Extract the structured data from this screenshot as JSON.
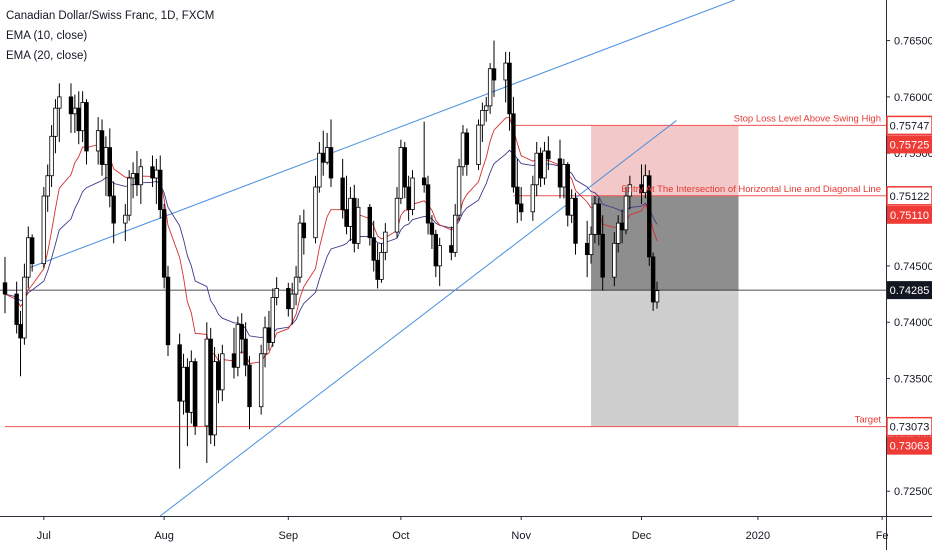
{
  "legend": {
    "title": "Canadian Dollar/Swiss Franc, 1D, FXCM",
    "ema1": "EMA (10, close)",
    "ema2": "EMA (20, close)"
  },
  "colors": {
    "trendline": "#4a8fde",
    "ema10": "#d32f2f",
    "ema20": "#3f3a8a",
    "stop_zone": "#f3c8c8",
    "target_zone_dark": "#8e8e8e",
    "target_zone_light": "#cfcfcf",
    "level_line": "#ef5350",
    "price_line": "#131722",
    "tag_red": "#ef3b36",
    "tag_black": "#131722"
  },
  "chart_data": {
    "type": "candlestick",
    "title": "Canadian Dollar/Swiss Franc, 1D, FXCM",
    "xlabel": "",
    "ylabel": "",
    "ylim": [
      0.7228,
      0.7686
    ],
    "date_range": [
      "2019-06-21",
      "2020-02-03"
    ],
    "x_tick_labels": [
      {
        "date": "2019-07-01",
        "label": "Jul"
      },
      {
        "date": "2019-08-01",
        "label": "Aug"
      },
      {
        "date": "2019-09-02",
        "label": "Sep"
      },
      {
        "date": "2019-10-01",
        "label": "Oct"
      },
      {
        "date": "2019-11-01",
        "label": "Nov"
      },
      {
        "date": "2019-12-02",
        "label": "Dec"
      },
      {
        "date": "2020-01-01",
        "label": "2020"
      },
      {
        "date": "2020-02-02",
        "label": "Fe"
      }
    ],
    "y_tick_labels": [
      "0.76500",
      "0.76000",
      "0.75500",
      "0.75000",
      "0.74500",
      "0.74000",
      "0.73500",
      "0.73000",
      "0.72500"
    ],
    "candles": [
      {
        "t": "2019-06-21",
        "o": 0.7435,
        "h": 0.7458,
        "l": 0.7408,
        "c": 0.7425
      },
      {
        "t": "2019-06-24",
        "o": 0.7425,
        "h": 0.7436,
        "l": 0.739,
        "c": 0.7398
      },
      {
        "t": "2019-06-25",
        "o": 0.7398,
        "h": 0.741,
        "l": 0.7352,
        "c": 0.7386
      },
      {
        "t": "2019-06-26",
        "o": 0.7386,
        "h": 0.7452,
        "l": 0.738,
        "c": 0.744
      },
      {
        "t": "2019-06-27",
        "o": 0.744,
        "h": 0.7485,
        "l": 0.743,
        "c": 0.7475
      },
      {
        "t": "2019-06-28",
        "o": 0.7475,
        "h": 0.7478,
        "l": 0.7445,
        "c": 0.7452
      },
      {
        "t": "2019-07-01",
        "o": 0.7452,
        "h": 0.752,
        "l": 0.7448,
        "c": 0.7512
      },
      {
        "t": "2019-07-02",
        "o": 0.7512,
        "h": 0.754,
        "l": 0.7498,
        "c": 0.753
      },
      {
        "t": "2019-07-03",
        "o": 0.753,
        "h": 0.7575,
        "l": 0.752,
        "c": 0.7565
      },
      {
        "t": "2019-07-04",
        "o": 0.7565,
        "h": 0.7598,
        "l": 0.755,
        "c": 0.759
      },
      {
        "t": "2019-07-05",
        "o": 0.759,
        "h": 0.7612,
        "l": 0.756,
        "c": 0.76
      },
      {
        "t": "2019-07-08",
        "o": 0.76,
        "h": 0.7612,
        "l": 0.7568,
        "c": 0.7585
      },
      {
        "t": "2019-07-09",
        "o": 0.7585,
        "h": 0.7602,
        "l": 0.7568,
        "c": 0.759
      },
      {
        "t": "2019-07-10",
        "o": 0.759,
        "h": 0.7605,
        "l": 0.7558,
        "c": 0.757
      },
      {
        "t": "2019-07-11",
        "o": 0.757,
        "h": 0.7605,
        "l": 0.756,
        "c": 0.7595
      },
      {
        "t": "2019-07-12",
        "o": 0.7595,
        "h": 0.7598,
        "l": 0.754,
        "c": 0.7552
      },
      {
        "t": "2019-07-15",
        "o": 0.7552,
        "h": 0.7582,
        "l": 0.754,
        "c": 0.757
      },
      {
        "t": "2019-07-16",
        "o": 0.757,
        "h": 0.758,
        "l": 0.753,
        "c": 0.754
      },
      {
        "t": "2019-07-17",
        "o": 0.754,
        "h": 0.7565,
        "l": 0.7512,
        "c": 0.7555
      },
      {
        "t": "2019-07-18",
        "o": 0.7555,
        "h": 0.7572,
        "l": 0.7502,
        "c": 0.7512
      },
      {
        "t": "2019-07-19",
        "o": 0.7512,
        "h": 0.7525,
        "l": 0.747,
        "c": 0.7488
      },
      {
        "t": "2019-07-22",
        "o": 0.7488,
        "h": 0.7505,
        "l": 0.7472,
        "c": 0.7495
      },
      {
        "t": "2019-07-23",
        "o": 0.7495,
        "h": 0.7535,
        "l": 0.749,
        "c": 0.7528
      },
      {
        "t": "2019-07-24",
        "o": 0.7528,
        "h": 0.7542,
        "l": 0.751,
        "c": 0.7532
      },
      {
        "t": "2019-07-25",
        "o": 0.7532,
        "h": 0.7552,
        "l": 0.7512,
        "c": 0.7522
      },
      {
        "t": "2019-07-26",
        "o": 0.7522,
        "h": 0.7545,
        "l": 0.7505,
        "c": 0.7538
      },
      {
        "t": "2019-07-29",
        "o": 0.7538,
        "h": 0.7548,
        "l": 0.752,
        "c": 0.7528
      },
      {
        "t": "2019-07-30",
        "o": 0.7528,
        "h": 0.7545,
        "l": 0.7505,
        "c": 0.7535
      },
      {
        "t": "2019-07-31",
        "o": 0.7535,
        "h": 0.7548,
        "l": 0.7492,
        "c": 0.75
      },
      {
        "t": "2019-08-01",
        "o": 0.75,
        "h": 0.7505,
        "l": 0.743,
        "c": 0.744
      },
      {
        "t": "2019-08-02",
        "o": 0.744,
        "h": 0.745,
        "l": 0.737,
        "c": 0.738
      },
      {
        "t": "2019-08-05",
        "o": 0.738,
        "h": 0.739,
        "l": 0.727,
        "c": 0.733
      },
      {
        "t": "2019-08-06",
        "o": 0.733,
        "h": 0.7372,
        "l": 0.7318,
        "c": 0.736
      },
      {
        "t": "2019-08-07",
        "o": 0.736,
        "h": 0.7368,
        "l": 0.729,
        "c": 0.732
      },
      {
        "t": "2019-08-08",
        "o": 0.732,
        "h": 0.7375,
        "l": 0.731,
        "c": 0.7365
      },
      {
        "t": "2019-08-09",
        "o": 0.7365,
        "h": 0.7368,
        "l": 0.73,
        "c": 0.7308
      },
      {
        "t": "2019-08-12",
        "o": 0.7308,
        "h": 0.74,
        "l": 0.7275,
        "c": 0.7385
      },
      {
        "t": "2019-08-13",
        "o": 0.7385,
        "h": 0.7395,
        "l": 0.7292,
        "c": 0.73
      },
      {
        "t": "2019-08-14",
        "o": 0.73,
        "h": 0.7378,
        "l": 0.729,
        "c": 0.7365
      },
      {
        "t": "2019-08-15",
        "o": 0.7365,
        "h": 0.7372,
        "l": 0.7328,
        "c": 0.734
      },
      {
        "t": "2019-08-16",
        "o": 0.734,
        "h": 0.738,
        "l": 0.733,
        "c": 0.7372
      },
      {
        "t": "2019-08-19",
        "o": 0.7372,
        "h": 0.7395,
        "l": 0.735,
        "c": 0.736
      },
      {
        "t": "2019-08-20",
        "o": 0.736,
        "h": 0.7405,
        "l": 0.7352,
        "c": 0.7398
      },
      {
        "t": "2019-08-21",
        "o": 0.7398,
        "h": 0.7408,
        "l": 0.7372,
        "c": 0.7385
      },
      {
        "t": "2019-08-22",
        "o": 0.7385,
        "h": 0.74,
        "l": 0.7352,
        "c": 0.7362
      },
      {
        "t": "2019-08-23",
        "o": 0.7362,
        "h": 0.737,
        "l": 0.7305,
        "c": 0.7325
      },
      {
        "t": "2019-08-26",
        "o": 0.7325,
        "h": 0.738,
        "l": 0.7318,
        "c": 0.7372
      },
      {
        "t": "2019-08-27",
        "o": 0.7372,
        "h": 0.7405,
        "l": 0.736,
        "c": 0.7395
      },
      {
        "t": "2019-08-28",
        "o": 0.7395,
        "h": 0.741,
        "l": 0.7375,
        "c": 0.7382
      },
      {
        "t": "2019-08-29",
        "o": 0.7382,
        "h": 0.743,
        "l": 0.7378,
        "c": 0.7422
      },
      {
        "t": "2019-08-30",
        "o": 0.7422,
        "h": 0.744,
        "l": 0.7415,
        "c": 0.743
      },
      {
        "t": "2019-09-02",
        "o": 0.743,
        "h": 0.7435,
        "l": 0.7405,
        "c": 0.7412
      },
      {
        "t": "2019-09-03",
        "o": 0.7412,
        "h": 0.7435,
        "l": 0.7398,
        "c": 0.7425
      },
      {
        "t": "2019-09-04",
        "o": 0.7425,
        "h": 0.745,
        "l": 0.7415,
        "c": 0.744
      },
      {
        "t": "2019-09-05",
        "o": 0.744,
        "h": 0.7495,
        "l": 0.7435,
        "c": 0.7488
      },
      {
        "t": "2019-09-06",
        "o": 0.7488,
        "h": 0.75,
        "l": 0.746,
        "c": 0.7475
      },
      {
        "t": "2019-09-09",
        "o": 0.7475,
        "h": 0.753,
        "l": 0.747,
        "c": 0.752
      },
      {
        "t": "2019-09-10",
        "o": 0.752,
        "h": 0.756,
        "l": 0.7515,
        "c": 0.755
      },
      {
        "t": "2019-09-11",
        "o": 0.755,
        "h": 0.757,
        "l": 0.753,
        "c": 0.7542
      },
      {
        "t": "2019-09-12",
        "o": 0.7542,
        "h": 0.7568,
        "l": 0.754,
        "c": 0.7555
      },
      {
        "t": "2019-09-13",
        "o": 0.7555,
        "h": 0.758,
        "l": 0.752,
        "c": 0.7528
      },
      {
        "t": "2019-09-16",
        "o": 0.7528,
        "h": 0.7545,
        "l": 0.7492,
        "c": 0.75
      },
      {
        "t": "2019-09-17",
        "o": 0.75,
        "h": 0.753,
        "l": 0.7478,
        "c": 0.7485
      },
      {
        "t": "2019-09-18",
        "o": 0.7485,
        "h": 0.752,
        "l": 0.7472,
        "c": 0.751
      },
      {
        "t": "2019-09-19",
        "o": 0.751,
        "h": 0.7522,
        "l": 0.7462,
        "c": 0.747
      },
      {
        "t": "2019-09-20",
        "o": 0.747,
        "h": 0.751,
        "l": 0.7465,
        "c": 0.7502
      },
      {
        "t": "2019-09-23",
        "o": 0.7502,
        "h": 0.7505,
        "l": 0.7468,
        "c": 0.7475
      },
      {
        "t": "2019-09-24",
        "o": 0.7475,
        "h": 0.749,
        "l": 0.7445,
        "c": 0.7455
      },
      {
        "t": "2019-09-25",
        "o": 0.7455,
        "h": 0.747,
        "l": 0.743,
        "c": 0.7438
      },
      {
        "t": "2019-09-26",
        "o": 0.7438,
        "h": 0.747,
        "l": 0.7435,
        "c": 0.7462
      },
      {
        "t": "2019-09-27",
        "o": 0.7462,
        "h": 0.7488,
        "l": 0.7455,
        "c": 0.748
      },
      {
        "t": "2019-09-30",
        "o": 0.748,
        "h": 0.752,
        "l": 0.7475,
        "c": 0.751
      },
      {
        "t": "2019-10-01",
        "o": 0.751,
        "h": 0.7562,
        "l": 0.7505,
        "c": 0.7555
      },
      {
        "t": "2019-10-02",
        "o": 0.7555,
        "h": 0.756,
        "l": 0.751,
        "c": 0.752
      },
      {
        "t": "2019-10-03",
        "o": 0.752,
        "h": 0.753,
        "l": 0.749,
        "c": 0.75
      },
      {
        "t": "2019-10-04",
        "o": 0.75,
        "h": 0.7535,
        "l": 0.7495,
        "c": 0.7528
      },
      {
        "t": "2019-10-07",
        "o": 0.7528,
        "h": 0.7578,
        "l": 0.7515,
        "c": 0.7522
      },
      {
        "t": "2019-10-08",
        "o": 0.7522,
        "h": 0.753,
        "l": 0.7478,
        "c": 0.7488
      },
      {
        "t": "2019-10-09",
        "o": 0.7488,
        "h": 0.7495,
        "l": 0.7465,
        "c": 0.7478
      },
      {
        "t": "2019-10-10",
        "o": 0.7478,
        "h": 0.7482,
        "l": 0.744,
        "c": 0.745
      },
      {
        "t": "2019-10-11",
        "o": 0.745,
        "h": 0.7475,
        "l": 0.7432,
        "c": 0.7468
      },
      {
        "t": "2019-10-14",
        "o": 0.7468,
        "h": 0.7485,
        "l": 0.7455,
        "c": 0.7462
      },
      {
        "t": "2019-10-15",
        "o": 0.7462,
        "h": 0.7505,
        "l": 0.7458,
        "c": 0.7495
      },
      {
        "t": "2019-10-16",
        "o": 0.7495,
        "h": 0.7545,
        "l": 0.749,
        "c": 0.7538
      },
      {
        "t": "2019-10-17",
        "o": 0.7538,
        "h": 0.7575,
        "l": 0.753,
        "c": 0.7568
      },
      {
        "t": "2019-10-18",
        "o": 0.7568,
        "h": 0.7572,
        "l": 0.753,
        "c": 0.754
      },
      {
        "t": "2019-10-21",
        "o": 0.754,
        "h": 0.758,
        "l": 0.7535,
        "c": 0.7575
      },
      {
        "t": "2019-10-22",
        "o": 0.7575,
        "h": 0.7595,
        "l": 0.756,
        "c": 0.7588
      },
      {
        "t": "2019-10-23",
        "o": 0.7588,
        "h": 0.76,
        "l": 0.7578,
        "c": 0.7592
      },
      {
        "t": "2019-10-24",
        "o": 0.7592,
        "h": 0.763,
        "l": 0.7585,
        "c": 0.7625
      },
      {
        "t": "2019-10-25",
        "o": 0.7625,
        "h": 0.765,
        "l": 0.76,
        "c": 0.7615
      },
      {
        "t": "2019-10-28",
        "o": 0.7615,
        "h": 0.764,
        "l": 0.7595,
        "c": 0.763
      },
      {
        "t": "2019-10-29",
        "o": 0.763,
        "h": 0.764,
        "l": 0.757,
        "c": 0.7585
      },
      {
        "t": "2019-10-30",
        "o": 0.7585,
        "h": 0.76,
        "l": 0.7515,
        "c": 0.752
      },
      {
        "t": "2019-10-31",
        "o": 0.752,
        "h": 0.7545,
        "l": 0.7488,
        "c": 0.7505
      },
      {
        "t": "2019-11-01",
        "o": 0.7505,
        "h": 0.752,
        "l": 0.749,
        "c": 0.7498
      },
      {
        "t": "2019-11-04",
        "o": 0.7498,
        "h": 0.753,
        "l": 0.749,
        "c": 0.7522
      },
      {
        "t": "2019-11-05",
        "o": 0.7522,
        "h": 0.756,
        "l": 0.7512,
        "c": 0.755
      },
      {
        "t": "2019-11-06",
        "o": 0.755,
        "h": 0.7555,
        "l": 0.752,
        "c": 0.7528
      },
      {
        "t": "2019-11-07",
        "o": 0.7528,
        "h": 0.756,
        "l": 0.7522,
        "c": 0.7552
      },
      {
        "t": "2019-11-08",
        "o": 0.7552,
        "h": 0.7565,
        "l": 0.7535,
        "c": 0.7545
      },
      {
        "t": "2019-11-11",
        "o": 0.7545,
        "h": 0.7562,
        "l": 0.751,
        "c": 0.752
      },
      {
        "t": "2019-11-12",
        "o": 0.752,
        "h": 0.7545,
        "l": 0.751,
        "c": 0.754
      },
      {
        "t": "2019-11-13",
        "o": 0.754,
        "h": 0.7542,
        "l": 0.7485,
        "c": 0.7495
      },
      {
        "t": "2019-11-14",
        "o": 0.7495,
        "h": 0.7518,
        "l": 0.7488,
        "c": 0.751
      },
      {
        "t": "2019-11-15",
        "o": 0.751,
        "h": 0.7515,
        "l": 0.746,
        "c": 0.747
      },
      {
        "t": "2019-11-18",
        "o": 0.747,
        "h": 0.749,
        "l": 0.744,
        "c": 0.746
      },
      {
        "t": "2019-11-19",
        "o": 0.746,
        "h": 0.7485,
        "l": 0.7452,
        "c": 0.7478
      },
      {
        "t": "2019-11-20",
        "o": 0.7478,
        "h": 0.7512,
        "l": 0.747,
        "c": 0.7505
      },
      {
        "t": "2019-11-21",
        "o": 0.7505,
        "h": 0.751,
        "l": 0.7468,
        "c": 0.7478
      },
      {
        "t": "2019-11-22",
        "o": 0.7478,
        "h": 0.7495,
        "l": 0.7428,
        "c": 0.744
      },
      {
        "t": "2019-11-25",
        "o": 0.744,
        "h": 0.748,
        "l": 0.7432,
        "c": 0.747
      },
      {
        "t": "2019-11-26",
        "o": 0.747,
        "h": 0.7495,
        "l": 0.7462,
        "c": 0.7488
      },
      {
        "t": "2019-11-27",
        "o": 0.7488,
        "h": 0.75,
        "l": 0.747,
        "c": 0.7482
      },
      {
        "t": "2019-11-28",
        "o": 0.7482,
        "h": 0.752,
        "l": 0.7478,
        "c": 0.7512
      },
      {
        "t": "2019-11-29",
        "o": 0.7512,
        "h": 0.753,
        "l": 0.75,
        "c": 0.7522
      },
      {
        "t": "2019-12-02",
        "o": 0.7522,
        "h": 0.754,
        "l": 0.7505,
        "c": 0.7515
      },
      {
        "t": "2019-12-03",
        "o": 0.7515,
        "h": 0.754,
        "l": 0.751,
        "c": 0.753
      },
      {
        "t": "2019-12-04",
        "o": 0.753,
        "h": 0.7535,
        "l": 0.745,
        "c": 0.7458
      },
      {
        "t": "2019-12-05",
        "o": 0.7458,
        "h": 0.7462,
        "l": 0.741,
        "c": 0.7418
      },
      {
        "t": "2019-12-06",
        "o": 0.7418,
        "h": 0.7436,
        "l": 0.7412,
        "c": 0.7428
      }
    ],
    "ema_series": [
      {
        "name": "EMA (10, close)",
        "source": "candles.close",
        "period": 10
      },
      {
        "name": "EMA (20, close)",
        "source": "candles.close",
        "period": 20
      }
    ],
    "trendlines": [
      {
        "from": {
          "t": "2019-06-27",
          "y": 0.7448
        },
        "to": {
          "t": "2019-12-26",
          "y": 0.7686
        }
      },
      {
        "from": {
          "t": "2019-07-31",
          "y": 0.7228
        },
        "to": {
          "t": "2019-12-11",
          "y": 0.7579
        }
      }
    ],
    "levels": [
      {
        "price": 0.75747,
        "label": "Stop Loss Level Above Swing High",
        "tag": "0.75747",
        "from": "2019-10-30",
        "style": "red"
      },
      {
        "price": 0.75725,
        "tag": "0.75725",
        "style": "red-tag"
      },
      {
        "price": 0.75122,
        "label": "Entry At The Intersection of Horizontal Line and Diagonal Line",
        "tag": "0.75122",
        "from": "2019-10-30",
        "style": "red"
      },
      {
        "price": 0.7511,
        "tag": "0.75110",
        "style": "red-tag"
      },
      {
        "price": 0.74285,
        "tag": "0.74285",
        "style": "black"
      },
      {
        "price": 0.73073,
        "label": "Target",
        "tag": "0.73073",
        "from": "2019-06-21",
        "style": "red"
      },
      {
        "price": 0.73063,
        "tag": "0.73063",
        "style": "red-tag"
      }
    ],
    "zones": [
      {
        "kind": "stop",
        "from": "2019-11-19",
        "to": "2019-12-27",
        "top": 0.75747,
        "bottom": 0.75122
      },
      {
        "kind": "target-dark",
        "from": "2019-11-19",
        "to": "2019-12-27",
        "top": 0.75122,
        "bottom": 0.74285
      },
      {
        "kind": "target-light",
        "from": "2019-11-19",
        "to": "2019-12-27",
        "top": 0.74285,
        "bottom": 0.73073
      }
    ],
    "grid": false,
    "legend_position": "top-left"
  }
}
